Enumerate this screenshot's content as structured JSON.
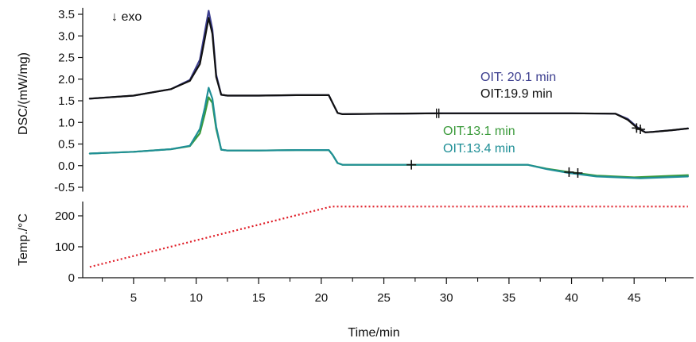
{
  "chart_data": {
    "type": "line",
    "xlabel": "Time/min",
    "x_ticks": [
      5,
      10,
      15,
      20,
      25,
      30,
      35,
      40,
      45
    ],
    "xlim": [
      1,
      49.5
    ],
    "annotation_exo": "↓ exo",
    "panels": [
      {
        "id": "dsc",
        "ylabel": "DSC/(mW/mg)",
        "ylim": [
          -0.6,
          3.65
        ],
        "y_ticks": [
          -0.5,
          0.0,
          0.5,
          1.0,
          1.5,
          2.0,
          2.5,
          3.0,
          3.5
        ],
        "y_tick_labels": [
          "-0.5",
          "0.0",
          "0.5",
          "1.0",
          "1.5",
          "2.0",
          "2.5",
          "3.0",
          "3.5"
        ],
        "series": [
          {
            "color": "#3d3f8f",
            "label": "OIT: 20.1 min",
            "x": [
              1.5,
              5,
              8,
              9.5,
              10.3,
              10.7,
              11.0,
              11.3,
              11.6,
              12.0,
              12.5,
              15,
              18,
              20.6,
              20.9,
              21.3,
              21.7,
              25,
              29.2,
              35,
              40,
              43.5,
              44.5,
              45.3,
              45.9,
              46.5,
              48,
              49.3
            ],
            "y": [
              1.55,
              1.62,
              1.77,
              1.98,
              2.45,
              3.1,
              3.58,
              3.15,
              2.1,
              1.64,
              1.62,
              1.62,
              1.63,
              1.63,
              1.45,
              1.22,
              1.19,
              1.2,
              1.21,
              1.21,
              1.21,
              1.2,
              1.08,
              0.88,
              0.77,
              0.78,
              0.82,
              0.86
            ]
          },
          {
            "color": "#111111",
            "label": "OIT:19.9 min",
            "x": [
              1.5,
              5,
              8,
              9.5,
              10.3,
              10.7,
              11.0,
              11.3,
              11.6,
              12.0,
              12.5,
              15,
              18,
              20.6,
              20.9,
              21.3,
              21.7,
              25,
              29.2,
              35,
              40,
              43.5,
              44.5,
              45.3,
              45.9,
              46.5,
              48,
              49.3
            ],
            "y": [
              1.55,
              1.62,
              1.77,
              1.96,
              2.35,
              2.95,
              3.42,
              3.05,
              2.05,
              1.64,
              1.62,
              1.62,
              1.63,
              1.63,
              1.45,
              1.22,
              1.19,
              1.2,
              1.21,
              1.21,
              1.21,
              1.2,
              1.06,
              0.86,
              0.77,
              0.78,
              0.82,
              0.86
            ]
          },
          {
            "color": "#3a9a3a",
            "label": "OIT:13.1 min",
            "x": [
              1.5,
              5,
              8,
              9.5,
              10.3,
              10.7,
              11.0,
              11.3,
              11.6,
              12.0,
              12.5,
              15,
              18,
              20.6,
              20.9,
              21.3,
              21.7,
              25,
              27.2,
              30,
              36.5,
              38,
              39.8,
              40.4,
              42,
              45,
              49.3
            ],
            "y": [
              0.28,
              0.32,
              0.38,
              0.45,
              0.75,
              1.2,
              1.58,
              1.45,
              0.85,
              0.37,
              0.35,
              0.35,
              0.36,
              0.36,
              0.25,
              0.06,
              0.02,
              0.02,
              0.02,
              0.02,
              0.02,
              -0.07,
              -0.15,
              -0.17,
              -0.23,
              -0.27,
              -0.22
            ]
          },
          {
            "color": "#1f8f96",
            "label": "OIT:13.4 min",
            "x": [
              1.5,
              5,
              8,
              9.5,
              10.3,
              10.7,
              11.0,
              11.3,
              11.6,
              12.0,
              12.5,
              15,
              18,
              20.6,
              20.9,
              21.3,
              21.7,
              25,
              27.2,
              30,
              36.5,
              38,
              39.8,
              40.4,
              42,
              45.5,
              49.3
            ],
            "y": [
              0.28,
              0.32,
              0.38,
              0.46,
              0.85,
              1.35,
              1.8,
              1.55,
              0.9,
              0.37,
              0.35,
              0.35,
              0.36,
              0.36,
              0.25,
              0.06,
              0.02,
              0.02,
              0.02,
              0.02,
              0.02,
              -0.08,
              -0.17,
              -0.19,
              -0.25,
              -0.29,
              -0.25
            ]
          }
        ],
        "markers": [
          {
            "x": 29.3,
            "y": 1.21,
            "style": "double"
          },
          {
            "x": 45.2,
            "y": 0.87,
            "style": "single"
          },
          {
            "x": 45.5,
            "y": 0.84,
            "style": "single"
          },
          {
            "x": 27.2,
            "y": 0.02,
            "style": "single"
          },
          {
            "x": 39.8,
            "y": -0.15,
            "style": "single"
          },
          {
            "x": 40.5,
            "y": -0.17,
            "style": "single"
          }
        ]
      },
      {
        "id": "temp",
        "ylabel": "Temp./°C",
        "ylim": [
          0,
          265
        ],
        "y_ticks": [
          0,
          100,
          200
        ],
        "y_tick_labels": [
          "0",
          "100",
          "200"
        ],
        "series": [
          {
            "color": "#e0202a",
            "style": "dotted",
            "x": [
              1.5,
              20.8,
              49.3
            ],
            "y": [
              35,
              230,
              230
            ]
          }
        ]
      }
    ]
  }
}
